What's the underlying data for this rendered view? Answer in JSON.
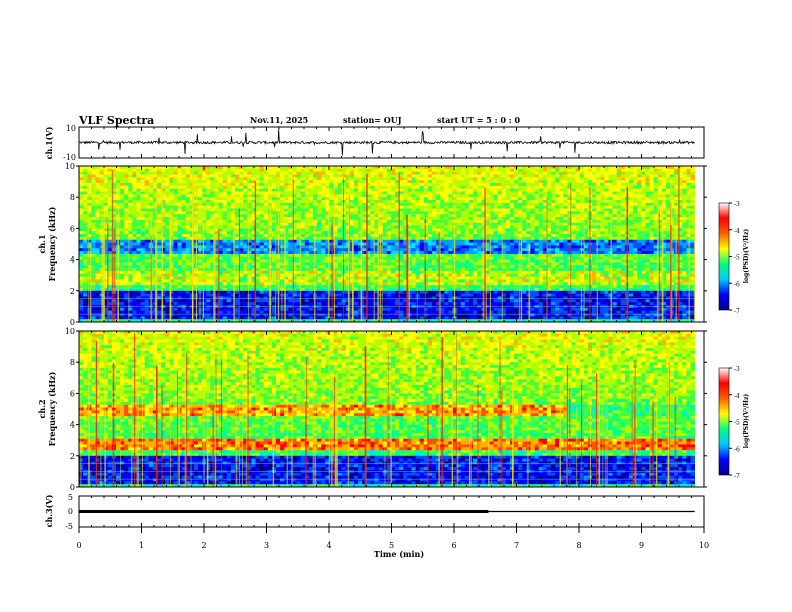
{
  "header": {
    "title": "VLF Spectra",
    "date": "Nov.11, 2025",
    "station": "station= OUJ",
    "start_ut": "start  UT =   5 : 0  : 0"
  },
  "chart_data": [
    {
      "type": "line",
      "panel": "ch1-waveform",
      "ylabel": "ch.1(V)",
      "ylim": [
        -10,
        10
      ],
      "y_ticks": [
        "10",
        "-10"
      ],
      "baseline": 0,
      "note": "noisy waveform near 0 V with occasional spikes"
    },
    {
      "type": "heatmap",
      "panel": "ch1-spectrogram",
      "ylabel": "Frequency  (kHz)",
      "channel_label": "ch.1",
      "ylim": [
        0,
        10
      ],
      "y_ticks": [
        "0",
        "2",
        "4",
        "6",
        "8",
        "10"
      ],
      "features": {
        "bands_khz": [
          [
            2.3,
            3.3,
            "green-yellow band"
          ],
          [
            4.3,
            5.2,
            "blue band"
          ],
          [
            0.2,
            2.0,
            "dark blue band"
          ]
        ],
        "sferics": "vertical broadband streaks throughout"
      },
      "colorbar": {
        "range": [
          -7,
          -3
        ],
        "ticks": [
          "-3",
          "-4",
          "-5",
          "-6",
          "-7"
        ],
        "label": "log(PSD)(V²/Hz)",
        "colors": [
          "#00008b",
          "#0000ff",
          "#00c8ff",
          "#00ff80",
          "#ffff00",
          "#ff6000",
          "#ff0000",
          "#ffffff"
        ]
      }
    },
    {
      "type": "heatmap",
      "panel": "ch2-spectrogram",
      "ylabel": "Frequency  (kHz)",
      "channel_label": "ch.2",
      "ylim": [
        0,
        10
      ],
      "y_ticks": [
        "0",
        "2",
        "4",
        "6",
        "8",
        "10"
      ],
      "features": {
        "bands_khz": [
          [
            2.4,
            3.0,
            "orange-red band"
          ],
          [
            4.6,
            5.2,
            "yellow-orange band until ~7.8 min"
          ],
          [
            0.2,
            2.0,
            "dark blue band"
          ]
        ],
        "sferics": "vertical broadband streaks throughout"
      },
      "colorbar": {
        "range": [
          -7,
          -3
        ],
        "ticks": [
          "-3",
          "-4",
          "-5",
          "-6",
          "-7"
        ],
        "label": "log(PSD)(V²/Hz)",
        "colors": [
          "#00008b",
          "#0000ff",
          "#00c8ff",
          "#00ff80",
          "#ffff00",
          "#ff6000",
          "#ff0000",
          "#ffffff"
        ]
      }
    },
    {
      "type": "line",
      "panel": "ch3-signal",
      "ylabel": "ch.3(V)",
      "ylim": [
        -5,
        5
      ],
      "y_ticks": [
        "5",
        "0",
        "-5"
      ],
      "series": [
        {
          "name": "thick",
          "x": [
            0,
            6.55
          ],
          "y": [
            0,
            0
          ]
        },
        {
          "name": "thin",
          "x": [
            6.55,
            9.85
          ],
          "y": [
            0,
            0
          ]
        }
      ]
    }
  ],
  "x_axis": {
    "label": "Time  (min)",
    "range": [
      0,
      10
    ],
    "ticks": [
      "0",
      "1",
      "2",
      "3",
      "4",
      "5",
      "6",
      "7",
      "8",
      "9",
      "10"
    ],
    "data_end": 9.85
  }
}
